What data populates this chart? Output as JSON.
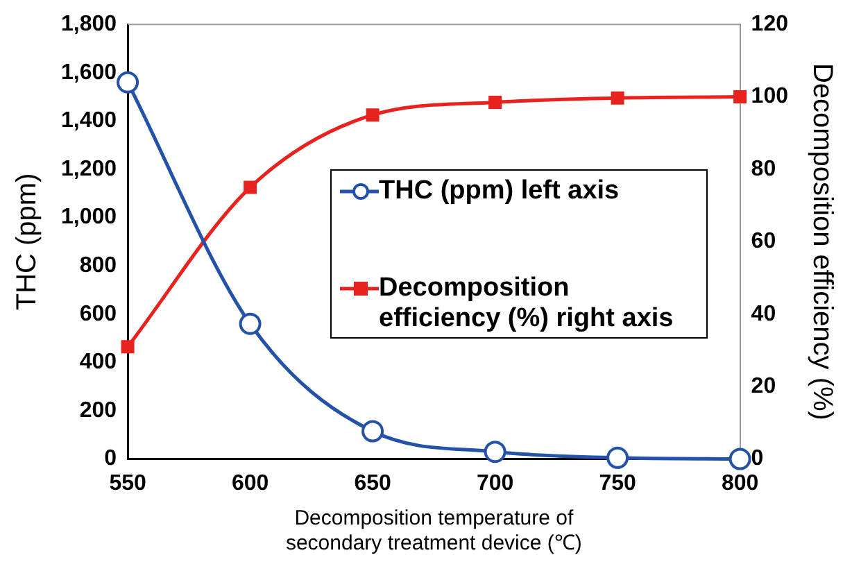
{
  "chart_data": {
    "type": "line",
    "xlabel": "Decomposition temperature of secondary treatment device (℃)",
    "ylabel": "THC (ppm)",
    "y2label": "Decomposition efficiency (%)",
    "x": [
      550,
      600,
      650,
      700,
      750,
      800
    ],
    "series": [
      {
        "name": "THC (ppm) left axis",
        "color": "#2352a8",
        "values": [
          1560,
          560,
          115,
          30,
          5,
          0
        ],
        "marker": "circle"
      },
      {
        "name": "Decomposition efficiency (%) right axis",
        "color": "#e8221e",
        "values": [
          31,
          75,
          95,
          98.5,
          99.7,
          100
        ],
        "axis": "y2",
        "marker": "square"
      }
    ],
    "xlim": [
      550,
      800
    ],
    "xticks": [
      550,
      600,
      650,
      700,
      750,
      800
    ],
    "ylim": [
      0,
      1800
    ],
    "yticks": [
      0,
      200,
      400,
      600,
      800,
      {
        "value": 1000,
        "label": "1,000"
      },
      {
        "value": 1200,
        "label": "1,200"
      },
      {
        "value": 1400,
        "label": "1,400"
      },
      {
        "value": 1600,
        "label": "1,600"
      },
      {
        "value": 1800,
        "label": "1,800"
      }
    ],
    "y2lim": [
      0,
      120
    ],
    "y2ticks": [
      0,
      20,
      40,
      60,
      80,
      100,
      120
    ],
    "grid": false,
    "legend": "right",
    "line_style": "solid"
  }
}
